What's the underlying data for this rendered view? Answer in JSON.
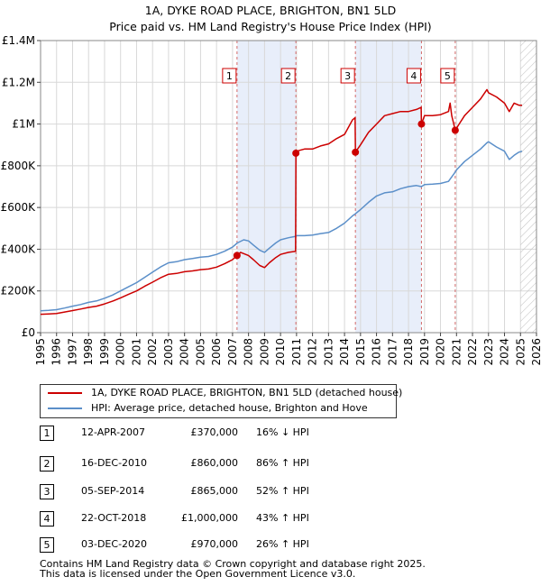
{
  "title_line1": "1A, DYKE ROAD PLACE, BRIGHTON, BN1 5LD",
  "title_line2": "Price paid vs. HM Land Registry's House Price Index (HPI)",
  "legend": {
    "property_label": "1A, DYKE ROAD PLACE, BRIGHTON, BN1 5LD (detached house)",
    "hpi_label": "HPI: Average price, detached house, Brighton and Hove"
  },
  "colors": {
    "property": "#cc0000",
    "hpi": "#5b8fc9",
    "shade": "#e8eefa",
    "grid": "#d8d8d8",
    "marker_line": "#d46a6a"
  },
  "sales": [
    {
      "num": "1",
      "date": "12-APR-2007",
      "price": "£370,000",
      "hpi": "16% ↓ HPI"
    },
    {
      "num": "2",
      "date": "16-DEC-2010",
      "price": "£860,000",
      "hpi": "86% ↑ HPI"
    },
    {
      "num": "3",
      "date": "05-SEP-2014",
      "price": "£865,000",
      "hpi": "52% ↑ HPI"
    },
    {
      "num": "4",
      "date": "22-OCT-2018",
      "price": "£1,000,000",
      "hpi": "43% ↑ HPI"
    },
    {
      "num": "5",
      "date": "03-DEC-2020",
      "price": "£970,000",
      "hpi": "26% ↑ HPI"
    }
  ],
  "footer_line1": "Contains HM Land Registry data © Crown copyright and database right 2025.",
  "footer_line2": "This data is licensed under the Open Government Licence v3.0.",
  "chart_data": {
    "type": "line",
    "title": "1A, DYKE ROAD PLACE, BRIGHTON, BN1 5LD",
    "subtitle": "Price paid vs. HM Land Registry's House Price Index (HPI)",
    "xlim": [
      1995,
      2026
    ],
    "ylim": [
      0,
      1400000
    ],
    "x_ticks": [
      1995,
      1996,
      1997,
      1998,
      1999,
      2000,
      2001,
      2002,
      2003,
      2004,
      2005,
      2006,
      2007,
      2008,
      2009,
      2010,
      2011,
      2012,
      2013,
      2014,
      2015,
      2016,
      2017,
      2018,
      2019,
      2020,
      2021,
      2022,
      2023,
      2024,
      2025,
      2026
    ],
    "y_ticks": [
      0,
      200000,
      400000,
      600000,
      800000,
      1000000,
      1200000,
      1400000
    ],
    "y_tick_labels": [
      "£0",
      "£200K",
      "£400K",
      "£600K",
      "£800K",
      "£1M",
      "£1.2M",
      "£1.4M"
    ],
    "grid": true,
    "legend_position": "below",
    "hatched_from": 2025.0,
    "sale_points": [
      {
        "label": "1",
        "x": 2007.28,
        "y": 370000
      },
      {
        "label": "2",
        "x": 2010.96,
        "y": 860000
      },
      {
        "label": "3",
        "x": 2014.68,
        "y": 865000
      },
      {
        "label": "4",
        "x": 2018.81,
        "y": 1000000
      },
      {
        "label": "5",
        "x": 2020.92,
        "y": 970000
      }
    ],
    "series": [
      {
        "name": "HPI: Average price, detached house, Brighton and Hove",
        "x": [
          1995,
          1995.5,
          1996,
          1996.5,
          1997,
          1997.5,
          1998,
          1998.5,
          1999,
          1999.5,
          2000,
          2000.5,
          2001,
          2001.5,
          2002,
          2002.5,
          2003,
          2003.5,
          2004,
          2004.5,
          2005,
          2005.5,
          2006,
          2006.5,
          2007,
          2007.3,
          2007.7,
          2008,
          2008.3,
          2008.7,
          2009,
          2009.3,
          2009.7,
          2010,
          2010.5,
          2010.96,
          2011,
          2011.5,
          2012,
          2012.5,
          2013,
          2013.5,
          2014,
          2014.5,
          2014.68,
          2015,
          2015.5,
          2016,
          2016.5,
          2017,
          2017.5,
          2018,
          2018.5,
          2018.81,
          2019,
          2019.5,
          2020,
          2020.5,
          2020.92,
          2021,
          2021.5,
          2022,
          2022.5,
          2022.9,
          2023,
          2023.5,
          2024,
          2024.3,
          2024.6,
          2024.9,
          2025.1
        ],
        "y": [
          105000,
          107000,
          110000,
          118000,
          127000,
          135000,
          145000,
          152000,
          165000,
          180000,
          200000,
          220000,
          240000,
          265000,
          290000,
          315000,
          335000,
          340000,
          350000,
          355000,
          362000,
          365000,
          375000,
          390000,
          410000,
          430000,
          445000,
          440000,
          420000,
          395000,
          385000,
          405000,
          430000,
          445000,
          455000,
          462000,
          465000,
          465000,
          468000,
          475000,
          480000,
          500000,
          525000,
          560000,
          570000,
          590000,
          625000,
          655000,
          670000,
          675000,
          690000,
          700000,
          705000,
          700000,
          710000,
          712000,
          715000,
          725000,
          770000,
          780000,
          820000,
          850000,
          880000,
          910000,
          915000,
          890000,
          870000,
          830000,
          850000,
          865000,
          870000
        ]
      },
      {
        "name": "1A, DYKE ROAD PLACE, BRIGHTON, BN1 5LD (detached house)",
        "x": [
          1995,
          1995.5,
          1996,
          1996.5,
          1997,
          1997.5,
          1998,
          1998.5,
          1999,
          1999.5,
          2000,
          2000.5,
          2001,
          2001.5,
          2002,
          2002.5,
          2003,
          2003.5,
          2004,
          2004.5,
          2005,
          2005.5,
          2006,
          2006.5,
          2007,
          2007.28,
          2007.5,
          2008,
          2008.3,
          2008.7,
          2009,
          2009.3,
          2009.7,
          2010,
          2010.5,
          2010.94,
          2010.96,
          2011,
          2011.5,
          2012,
          2012.5,
          2013,
          2013.5,
          2014,
          2014.5,
          2014.66,
          2014.68,
          2015,
          2015.5,
          2016,
          2016.5,
          2017,
          2017.5,
          2018,
          2018.5,
          2018.79,
          2018.81,
          2019,
          2019.5,
          2020,
          2020.5,
          2020.6,
          2020.7,
          2020.92,
          2021,
          2021.5,
          2022,
          2022.5,
          2022.9,
          2023,
          2023.5,
          2024,
          2024.3,
          2024.6,
          2024.9,
          2025.1
        ],
        "y": [
          88000,
          90000,
          92000,
          99000,
          106000,
          113000,
          121000,
          127000,
          138000,
          151000,
          167000,
          184000,
          200000,
          222000,
          242000,
          263000,
          280000,
          284000,
          292000,
          296000,
          302000,
          305000,
          314000,
          330000,
          350000,
          370000,
          385000,
          370000,
          350000,
          322000,
          312000,
          335000,
          360000,
          375000,
          385000,
          390000,
          860000,
          870000,
          880000,
          880000,
          895000,
          905000,
          930000,
          950000,
          1020000,
          1030000,
          865000,
          900000,
          960000,
          1000000,
          1040000,
          1050000,
          1060000,
          1060000,
          1070000,
          1080000,
          1000000,
          1040000,
          1040000,
          1045000,
          1060000,
          1100000,
          1040000,
          970000,
          980000,
          1040000,
          1080000,
          1120000,
          1165000,
          1150000,
          1130000,
          1100000,
          1060000,
          1100000,
          1090000,
          1090000
        ]
      }
    ]
  }
}
